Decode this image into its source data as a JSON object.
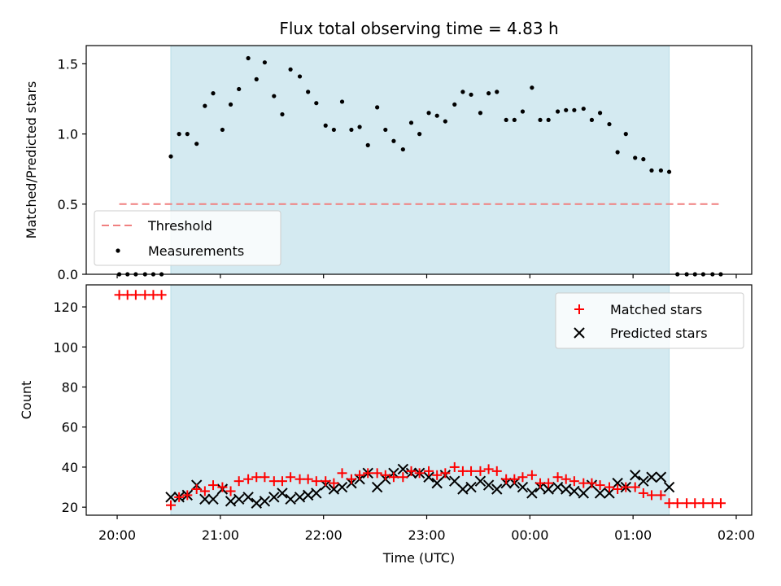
{
  "chart_data": [
    {
      "type": "scatter",
      "title": "Flux total observing time = 4.83 h",
      "ylabel": "Matched/Predicted stars",
      "xlabel": "",
      "x_tick_labels": [
        "20:00",
        "21:00",
        "22:00",
        "23:00",
        "00:00",
        "01:00",
        "02:00"
      ],
      "y_ticks": [
        "0.0",
        "0.5",
        "1.0",
        "1.5"
      ],
      "ylim": [
        0,
        1.63
      ],
      "x_range_hours": [
        19.7,
        26.15
      ],
      "shaded_span_hours": [
        20.52,
        25.35
      ],
      "shade_color": "#d4eaf1",
      "legend_location": "lower-left",
      "threshold": {
        "name": "Threshold",
        "value": 0.5,
        "x_start": 20.02,
        "x_end": 25.83,
        "color": "#f08080",
        "style": "dashed"
      },
      "measurements": {
        "name": "Measurements",
        "color": "#000000",
        "points": [
          [
            20.02,
            0
          ],
          [
            20.1,
            0
          ],
          [
            20.18,
            0
          ],
          [
            20.27,
            0
          ],
          [
            20.35,
            0
          ],
          [
            20.43,
            0
          ],
          [
            20.52,
            0.84
          ],
          [
            20.6,
            1.0
          ],
          [
            20.68,
            1.0
          ],
          [
            20.77,
            0.93
          ],
          [
            20.85,
            1.2
          ],
          [
            20.93,
            1.29
          ],
          [
            21.02,
            1.03
          ],
          [
            21.1,
            1.21
          ],
          [
            21.18,
            1.32
          ],
          [
            21.27,
            1.54
          ],
          [
            21.35,
            1.39
          ],
          [
            21.43,
            1.51
          ],
          [
            21.52,
            1.27
          ],
          [
            21.6,
            1.14
          ],
          [
            21.68,
            1.46
          ],
          [
            21.77,
            1.41
          ],
          [
            21.85,
            1.3
          ],
          [
            21.93,
            1.22
          ],
          [
            22.02,
            1.06
          ],
          [
            22.1,
            1.03
          ],
          [
            22.18,
            1.23
          ],
          [
            22.27,
            1.03
          ],
          [
            22.35,
            1.05
          ],
          [
            22.43,
            0.92
          ],
          [
            22.52,
            1.19
          ],
          [
            22.6,
            1.03
          ],
          [
            22.68,
            0.95
          ],
          [
            22.77,
            0.89
          ],
          [
            22.85,
            1.08
          ],
          [
            22.93,
            1.0
          ],
          [
            23.02,
            1.15
          ],
          [
            23.1,
            1.13
          ],
          [
            23.18,
            1.09
          ],
          [
            23.27,
            1.21
          ],
          [
            23.35,
            1.3
          ],
          [
            23.43,
            1.28
          ],
          [
            23.52,
            1.15
          ],
          [
            23.6,
            1.29
          ],
          [
            23.68,
            1.3
          ],
          [
            23.77,
            1.1
          ],
          [
            23.85,
            1.1
          ],
          [
            23.93,
            1.16
          ],
          [
            24.02,
            1.33
          ],
          [
            24.1,
            1.1
          ],
          [
            24.18,
            1.1
          ],
          [
            24.27,
            1.16
          ],
          [
            24.35,
            1.17
          ],
          [
            24.43,
            1.17
          ],
          [
            24.52,
            1.18
          ],
          [
            24.6,
            1.1
          ],
          [
            24.68,
            1.15
          ],
          [
            24.77,
            1.07
          ],
          [
            24.85,
            0.87
          ],
          [
            24.93,
            1.0
          ],
          [
            25.02,
            0.83
          ],
          [
            25.1,
            0.82
          ],
          [
            25.18,
            0.74
          ],
          [
            25.27,
            0.74
          ],
          [
            25.35,
            0.73
          ],
          [
            25.43,
            0
          ],
          [
            25.52,
            0
          ],
          [
            25.6,
            0
          ],
          [
            25.68,
            0
          ],
          [
            25.77,
            0
          ],
          [
            25.85,
            0
          ]
        ]
      }
    },
    {
      "type": "scatter",
      "title": "",
      "xlabel": "Time (UTC)",
      "ylabel": "Count",
      "x_tick_labels": [
        "20:00",
        "21:00",
        "22:00",
        "23:00",
        "00:00",
        "01:00",
        "02:00"
      ],
      "y_ticks": [
        "20",
        "40",
        "60",
        "80",
        "100",
        "120"
      ],
      "ylim": [
        16,
        131
      ],
      "x_range_hours": [
        19.7,
        26.15
      ],
      "shaded_span_hours": [
        20.52,
        25.35
      ],
      "shade_color": "#d4eaf1",
      "legend_location": "upper-right",
      "series": [
        {
          "name": "Matched stars",
          "marker": "plus",
          "color": "#ff0000",
          "points": [
            [
              20.02,
              126
            ],
            [
              20.1,
              126
            ],
            [
              20.18,
              126
            ],
            [
              20.27,
              126
            ],
            [
              20.35,
              126
            ],
            [
              20.43,
              126
            ],
            [
              20.52,
              21
            ],
            [
              20.6,
              25
            ],
            [
              20.68,
              26
            ],
            [
              20.77,
              29
            ],
            [
              20.85,
              28
            ],
            [
              20.93,
              31
            ],
            [
              21.02,
              30
            ],
            [
              21.1,
              28
            ],
            [
              21.18,
              33
            ],
            [
              21.27,
              34
            ],
            [
              21.35,
              35
            ],
            [
              21.43,
              35
            ],
            [
              21.52,
              33
            ],
            [
              21.6,
              33
            ],
            [
              21.68,
              35
            ],
            [
              21.77,
              34
            ],
            [
              21.85,
              34
            ],
            [
              21.93,
              33
            ],
            [
              22.02,
              33
            ],
            [
              22.1,
              32
            ],
            [
              22.18,
              37
            ],
            [
              22.27,
              34
            ],
            [
              22.35,
              36
            ],
            [
              22.43,
              37
            ],
            [
              22.52,
              37
            ],
            [
              22.6,
              36
            ],
            [
              22.68,
              35
            ],
            [
              22.77,
              35
            ],
            [
              22.85,
              38
            ],
            [
              22.93,
              37
            ],
            [
              23.02,
              38
            ],
            [
              23.1,
              36
            ],
            [
              23.18,
              37
            ],
            [
              23.27,
              40
            ],
            [
              23.35,
              38
            ],
            [
              23.43,
              38
            ],
            [
              23.52,
              38
            ],
            [
              23.6,
              39
            ],
            [
              23.68,
              38
            ],
            [
              23.77,
              34
            ],
            [
              23.85,
              34
            ],
            [
              23.93,
              35
            ],
            [
              24.02,
              36
            ],
            [
              24.1,
              32
            ],
            [
              24.18,
              32
            ],
            [
              24.27,
              35
            ],
            [
              24.35,
              34
            ],
            [
              24.43,
              33
            ],
            [
              24.52,
              32
            ],
            [
              24.6,
              32
            ],
            [
              24.68,
              31
            ],
            [
              24.77,
              30
            ],
            [
              24.85,
              29
            ],
            [
              24.93,
              30
            ],
            [
              25.02,
              30
            ],
            [
              25.1,
              27
            ],
            [
              25.18,
              26
            ],
            [
              25.27,
              26
            ],
            [
              25.35,
              22
            ],
            [
              25.43,
              22
            ],
            [
              25.52,
              22
            ],
            [
              25.6,
              22
            ],
            [
              25.68,
              22
            ],
            [
              25.77,
              22
            ],
            [
              25.85,
              22
            ]
          ]
        },
        {
          "name": "Predicted stars",
          "marker": "x",
          "color": "#000000",
          "points": [
            [
              20.52,
              25
            ],
            [
              20.6,
              25
            ],
            [
              20.68,
              26
            ],
            [
              20.77,
              31
            ],
            [
              20.85,
              24
            ],
            [
              20.93,
              24
            ],
            [
              21.02,
              29
            ],
            [
              21.1,
              23
            ],
            [
              21.18,
              24
            ],
            [
              21.27,
              25
            ],
            [
              21.35,
              22
            ],
            [
              21.43,
              23
            ],
            [
              21.52,
              25
            ],
            [
              21.6,
              27
            ],
            [
              21.68,
              24
            ],
            [
              21.77,
              25
            ],
            [
              21.85,
              26
            ],
            [
              21.93,
              27
            ],
            [
              22.02,
              31
            ],
            [
              22.1,
              29
            ],
            [
              22.18,
              30
            ],
            [
              22.27,
              32
            ],
            [
              22.35,
              34
            ],
            [
              22.43,
              37
            ],
            [
              22.52,
              30
            ],
            [
              22.6,
              34
            ],
            [
              22.68,
              37
            ],
            [
              22.77,
              39
            ],
            [
              22.85,
              37
            ],
            [
              22.93,
              37
            ],
            [
              23.02,
              35
            ],
            [
              23.1,
              32
            ],
            [
              23.18,
              36
            ],
            [
              23.27,
              33
            ],
            [
              23.35,
              29
            ],
            [
              23.43,
              30
            ],
            [
              23.52,
              33
            ],
            [
              23.6,
              31
            ],
            [
              23.68,
              29
            ],
            [
              23.77,
              32
            ],
            [
              23.85,
              32
            ],
            [
              23.93,
              30
            ],
            [
              24.02,
              27
            ],
            [
              24.1,
              30
            ],
            [
              24.18,
              29
            ],
            [
              24.27,
              30
            ],
            [
              24.35,
              29
            ],
            [
              24.43,
              28
            ],
            [
              24.52,
              27
            ],
            [
              24.6,
              31
            ],
            [
              24.68,
              27
            ],
            [
              24.77,
              27
            ],
            [
              24.85,
              32
            ],
            [
              24.93,
              30
            ],
            [
              25.02,
              36
            ],
            [
              25.1,
              33
            ],
            [
              25.18,
              35
            ],
            [
              25.27,
              35
            ],
            [
              25.35,
              30
            ]
          ]
        }
      ]
    }
  ]
}
